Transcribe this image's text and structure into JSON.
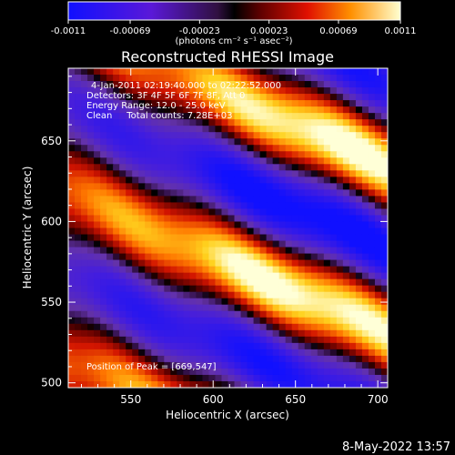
{
  "chart_data": {
    "type": "heatmap",
    "title": "Reconstructed RHESSI Image",
    "xlabel": "Heliocentric X (arcsec)",
    "ylabel": "Heliocentric Y (arcsec)",
    "xlim": [
      512,
      706
    ],
    "ylim": [
      497,
      695
    ],
    "x_ticks": [
      550,
      600,
      650,
      700
    ],
    "y_ticks": [
      500,
      550,
      600,
      650
    ],
    "colorbar": {
      "min": -0.0011,
      "max": 0.0011,
      "ticks": [
        "-0.0011",
        "-0.00069",
        "-0.00023",
        "0.00023",
        "0.00069",
        "0.0011"
      ],
      "tick_values": [
        -0.0011,
        -0.00069,
        -0.00023,
        0.00023,
        0.00069,
        0.0011
      ],
      "unit_label": "(photons cm⁻² s⁻¹ asec⁻²)"
    },
    "annotations": {
      "time_range": "4-Jan-2011 02:19:40.000 to 02:22:52.000",
      "detectors": "Detectors: 3F 4F 5F 6F 7F 8F, Att 0",
      "energy_range": "Energy Range: 12.0 - 25.0 keV",
      "method_counts": "Clean     Total counts: 7.28E+03",
      "peak": "Position of Peak = [669,547]"
    },
    "peak_position": [
      669,
      547
    ],
    "colormap": "rhessi-bipolar (blue → purple → black → red → orange → yellow → white)",
    "pattern": "diagonal alternating positive/negative bands, bright maxima along band through ~(660,550) and ~(665,660)"
  },
  "footer": {
    "date": "8-May-2022 13:57"
  }
}
